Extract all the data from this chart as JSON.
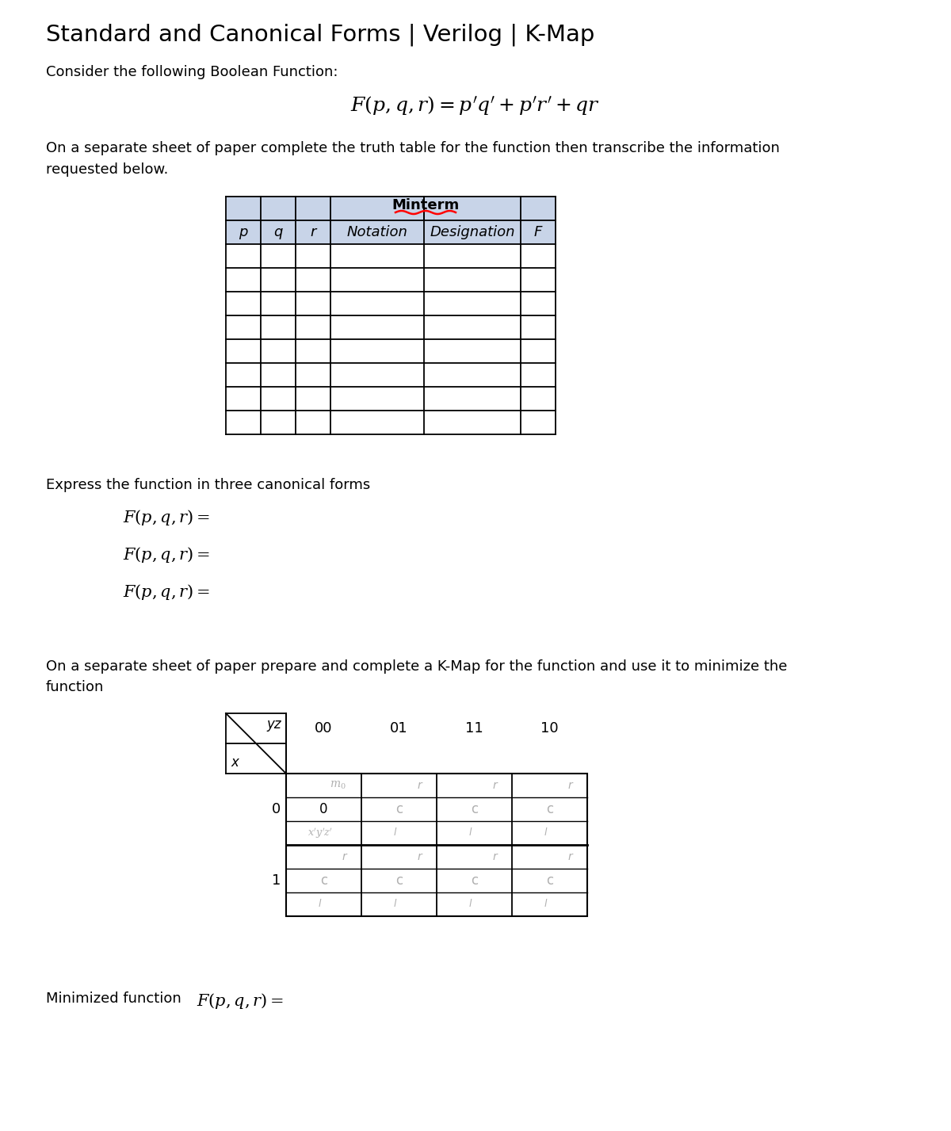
{
  "title": "Standard and Canonical Forms | Verilog | K-Map",
  "consider_text": "Consider the following Boolean Function:",
  "truth_table_intro_1": "On a separate sheet of paper complete the truth table for the function then transcribe the information",
  "truth_table_intro_2": "requested below.",
  "truth_table_headers": [
    "p",
    "q",
    "r",
    "Notation",
    "Designation",
    "F"
  ],
  "truth_table_minterm_header": "Minterm",
  "truth_table_rows": 8,
  "canonical_intro": "Express the function in three canonical forms",
  "kmap_intro_1": "On a separate sheet of paper prepare and complete a K-Map for the function and use it to minimize the",
  "kmap_intro_2": "function",
  "kmap_yz_label": "yz",
  "kmap_x_label": "x",
  "kmap_cols": [
    "00",
    "01",
    "11",
    "10"
  ],
  "kmap_rows": [
    "0",
    "1"
  ],
  "minimized_label": "Minimized function",
  "bg_color": "#ffffff",
  "table_header_bg": "#c8d4e8",
  "table_line_color": "#000000",
  "text_color": "#000000",
  "gray_text": "#b0b0b0"
}
